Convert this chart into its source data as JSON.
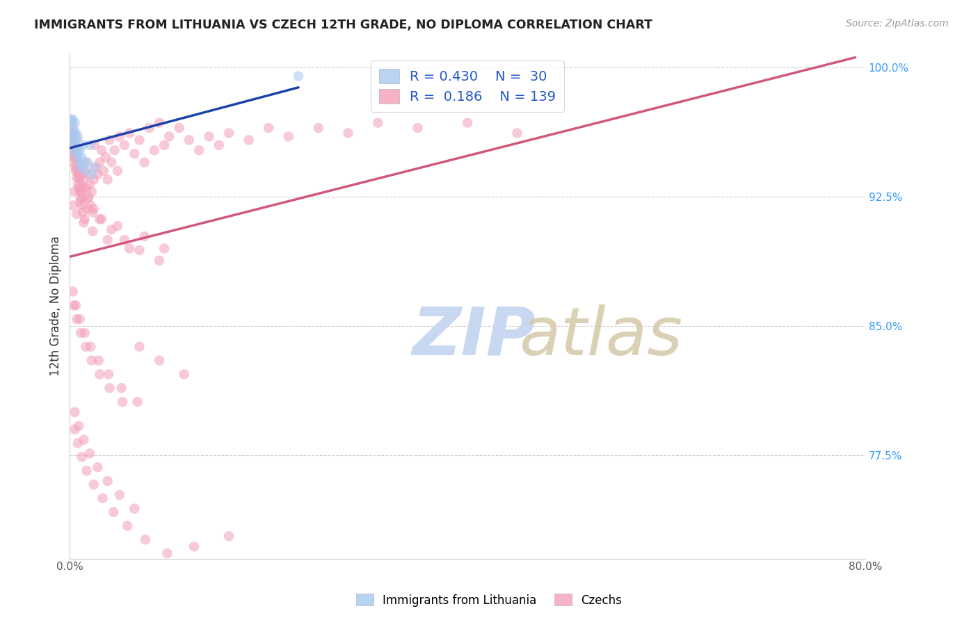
{
  "title": "IMMIGRANTS FROM LITHUANIA VS CZECH 12TH GRADE, NO DIPLOMA CORRELATION CHART",
  "source": "Source: ZipAtlas.com",
  "ylabel": "12th Grade, No Diploma",
  "xlim": [
    0.0,
    0.8
  ],
  "ylim": [
    0.715,
    1.008
  ],
  "color_lithuania": "#a8c8f0",
  "color_czech": "#f4a0b8",
  "color_line_lithuania": "#1a44aa",
  "color_line_czech": "#d05878",
  "scatter_alpha": 0.55,
  "scatter_size": 110,
  "watermark_color_zip": "#c8d8f0",
  "watermark_color_atlas": "#d4c8a8",
  "legend_label_1": "Immigrants from Lithuania",
  "legend_label_2": "Czechs",
  "lith_x": [
    0.001,
    0.002,
    0.002,
    0.003,
    0.003,
    0.003,
    0.004,
    0.004,
    0.005,
    0.005,
    0.005,
    0.006,
    0.006,
    0.007,
    0.007,
    0.008,
    0.008,
    0.009,
    0.01,
    0.01,
    0.011,
    0.012,
    0.013,
    0.014,
    0.016,
    0.018,
    0.02,
    0.022,
    0.025,
    0.23
  ],
  "lith_y": [
    0.97,
    0.96,
    0.968,
    0.955,
    0.962,
    0.97,
    0.958,
    0.965,
    0.952,
    0.96,
    0.968,
    0.955,
    0.962,
    0.95,
    0.958,
    0.952,
    0.96,
    0.948,
    0.945,
    0.952,
    0.942,
    0.948,
    0.955,
    0.944,
    0.94,
    0.945,
    0.955,
    0.938,
    0.942,
    0.995
  ],
  "czech_x": [
    0.001,
    0.002,
    0.002,
    0.003,
    0.003,
    0.004,
    0.004,
    0.005,
    0.005,
    0.006,
    0.006,
    0.007,
    0.007,
    0.008,
    0.008,
    0.009,
    0.009,
    0.01,
    0.01,
    0.011,
    0.011,
    0.012,
    0.012,
    0.013,
    0.013,
    0.014,
    0.015,
    0.015,
    0.016,
    0.017,
    0.018,
    0.019,
    0.02,
    0.021,
    0.022,
    0.023,
    0.024,
    0.025,
    0.026,
    0.028,
    0.03,
    0.032,
    0.034,
    0.036,
    0.038,
    0.04,
    0.042,
    0.045,
    0.048,
    0.05,
    0.055,
    0.06,
    0.065,
    0.07,
    0.075,
    0.08,
    0.085,
    0.09,
    0.095,
    0.1,
    0.11,
    0.12,
    0.13,
    0.14,
    0.15,
    0.16,
    0.18,
    0.2,
    0.22,
    0.25,
    0.28,
    0.31,
    0.35,
    0.4,
    0.45,
    0.003,
    0.005,
    0.007,
    0.01,
    0.014,
    0.018,
    0.023,
    0.03,
    0.038,
    0.048,
    0.06,
    0.075,
    0.095,
    0.002,
    0.004,
    0.006,
    0.009,
    0.013,
    0.018,
    0.024,
    0.032,
    0.042,
    0.055,
    0.07,
    0.09,
    0.003,
    0.006,
    0.01,
    0.015,
    0.021,
    0.029,
    0.039,
    0.052,
    0.068,
    0.004,
    0.007,
    0.011,
    0.016,
    0.022,
    0.03,
    0.04,
    0.053,
    0.07,
    0.09,
    0.115,
    0.005,
    0.009,
    0.014,
    0.02,
    0.028,
    0.038,
    0.05,
    0.065,
    0.005,
    0.008,
    0.012,
    0.017,
    0.024,
    0.033,
    0.044,
    0.058,
    0.076,
    0.098,
    0.125,
    0.16
  ],
  "czech_y": [
    0.962,
    0.958,
    0.965,
    0.952,
    0.96,
    0.948,
    0.956,
    0.944,
    0.952,
    0.94,
    0.948,
    0.936,
    0.944,
    0.932,
    0.94,
    0.93,
    0.938,
    0.928,
    0.936,
    0.924,
    0.932,
    0.92,
    0.928,
    0.916,
    0.924,
    0.935,
    0.912,
    0.94,
    0.945,
    0.93,
    0.938,
    0.925,
    0.932,
    0.92,
    0.928,
    0.916,
    0.935,
    0.955,
    0.942,
    0.938,
    0.945,
    0.952,
    0.94,
    0.948,
    0.935,
    0.958,
    0.945,
    0.952,
    0.94,
    0.96,
    0.955,
    0.962,
    0.95,
    0.958,
    0.945,
    0.965,
    0.952,
    0.968,
    0.955,
    0.96,
    0.965,
    0.958,
    0.952,
    0.96,
    0.955,
    0.962,
    0.958,
    0.965,
    0.96,
    0.965,
    0.962,
    0.968,
    0.965,
    0.968,
    0.962,
    0.92,
    0.928,
    0.915,
    0.922,
    0.91,
    0.918,
    0.905,
    0.912,
    0.9,
    0.908,
    0.895,
    0.902,
    0.895,
    0.955,
    0.948,
    0.942,
    0.936,
    0.93,
    0.924,
    0.918,
    0.912,
    0.906,
    0.9,
    0.894,
    0.888,
    0.87,
    0.862,
    0.854,
    0.846,
    0.838,
    0.83,
    0.822,
    0.814,
    0.806,
    0.862,
    0.854,
    0.846,
    0.838,
    0.83,
    0.822,
    0.814,
    0.806,
    0.838,
    0.83,
    0.822,
    0.8,
    0.792,
    0.784,
    0.776,
    0.768,
    0.76,
    0.752,
    0.744,
    0.79,
    0.782,
    0.774,
    0.766,
    0.758,
    0.75,
    0.742,
    0.734,
    0.726,
    0.718,
    0.722,
    0.728
  ]
}
